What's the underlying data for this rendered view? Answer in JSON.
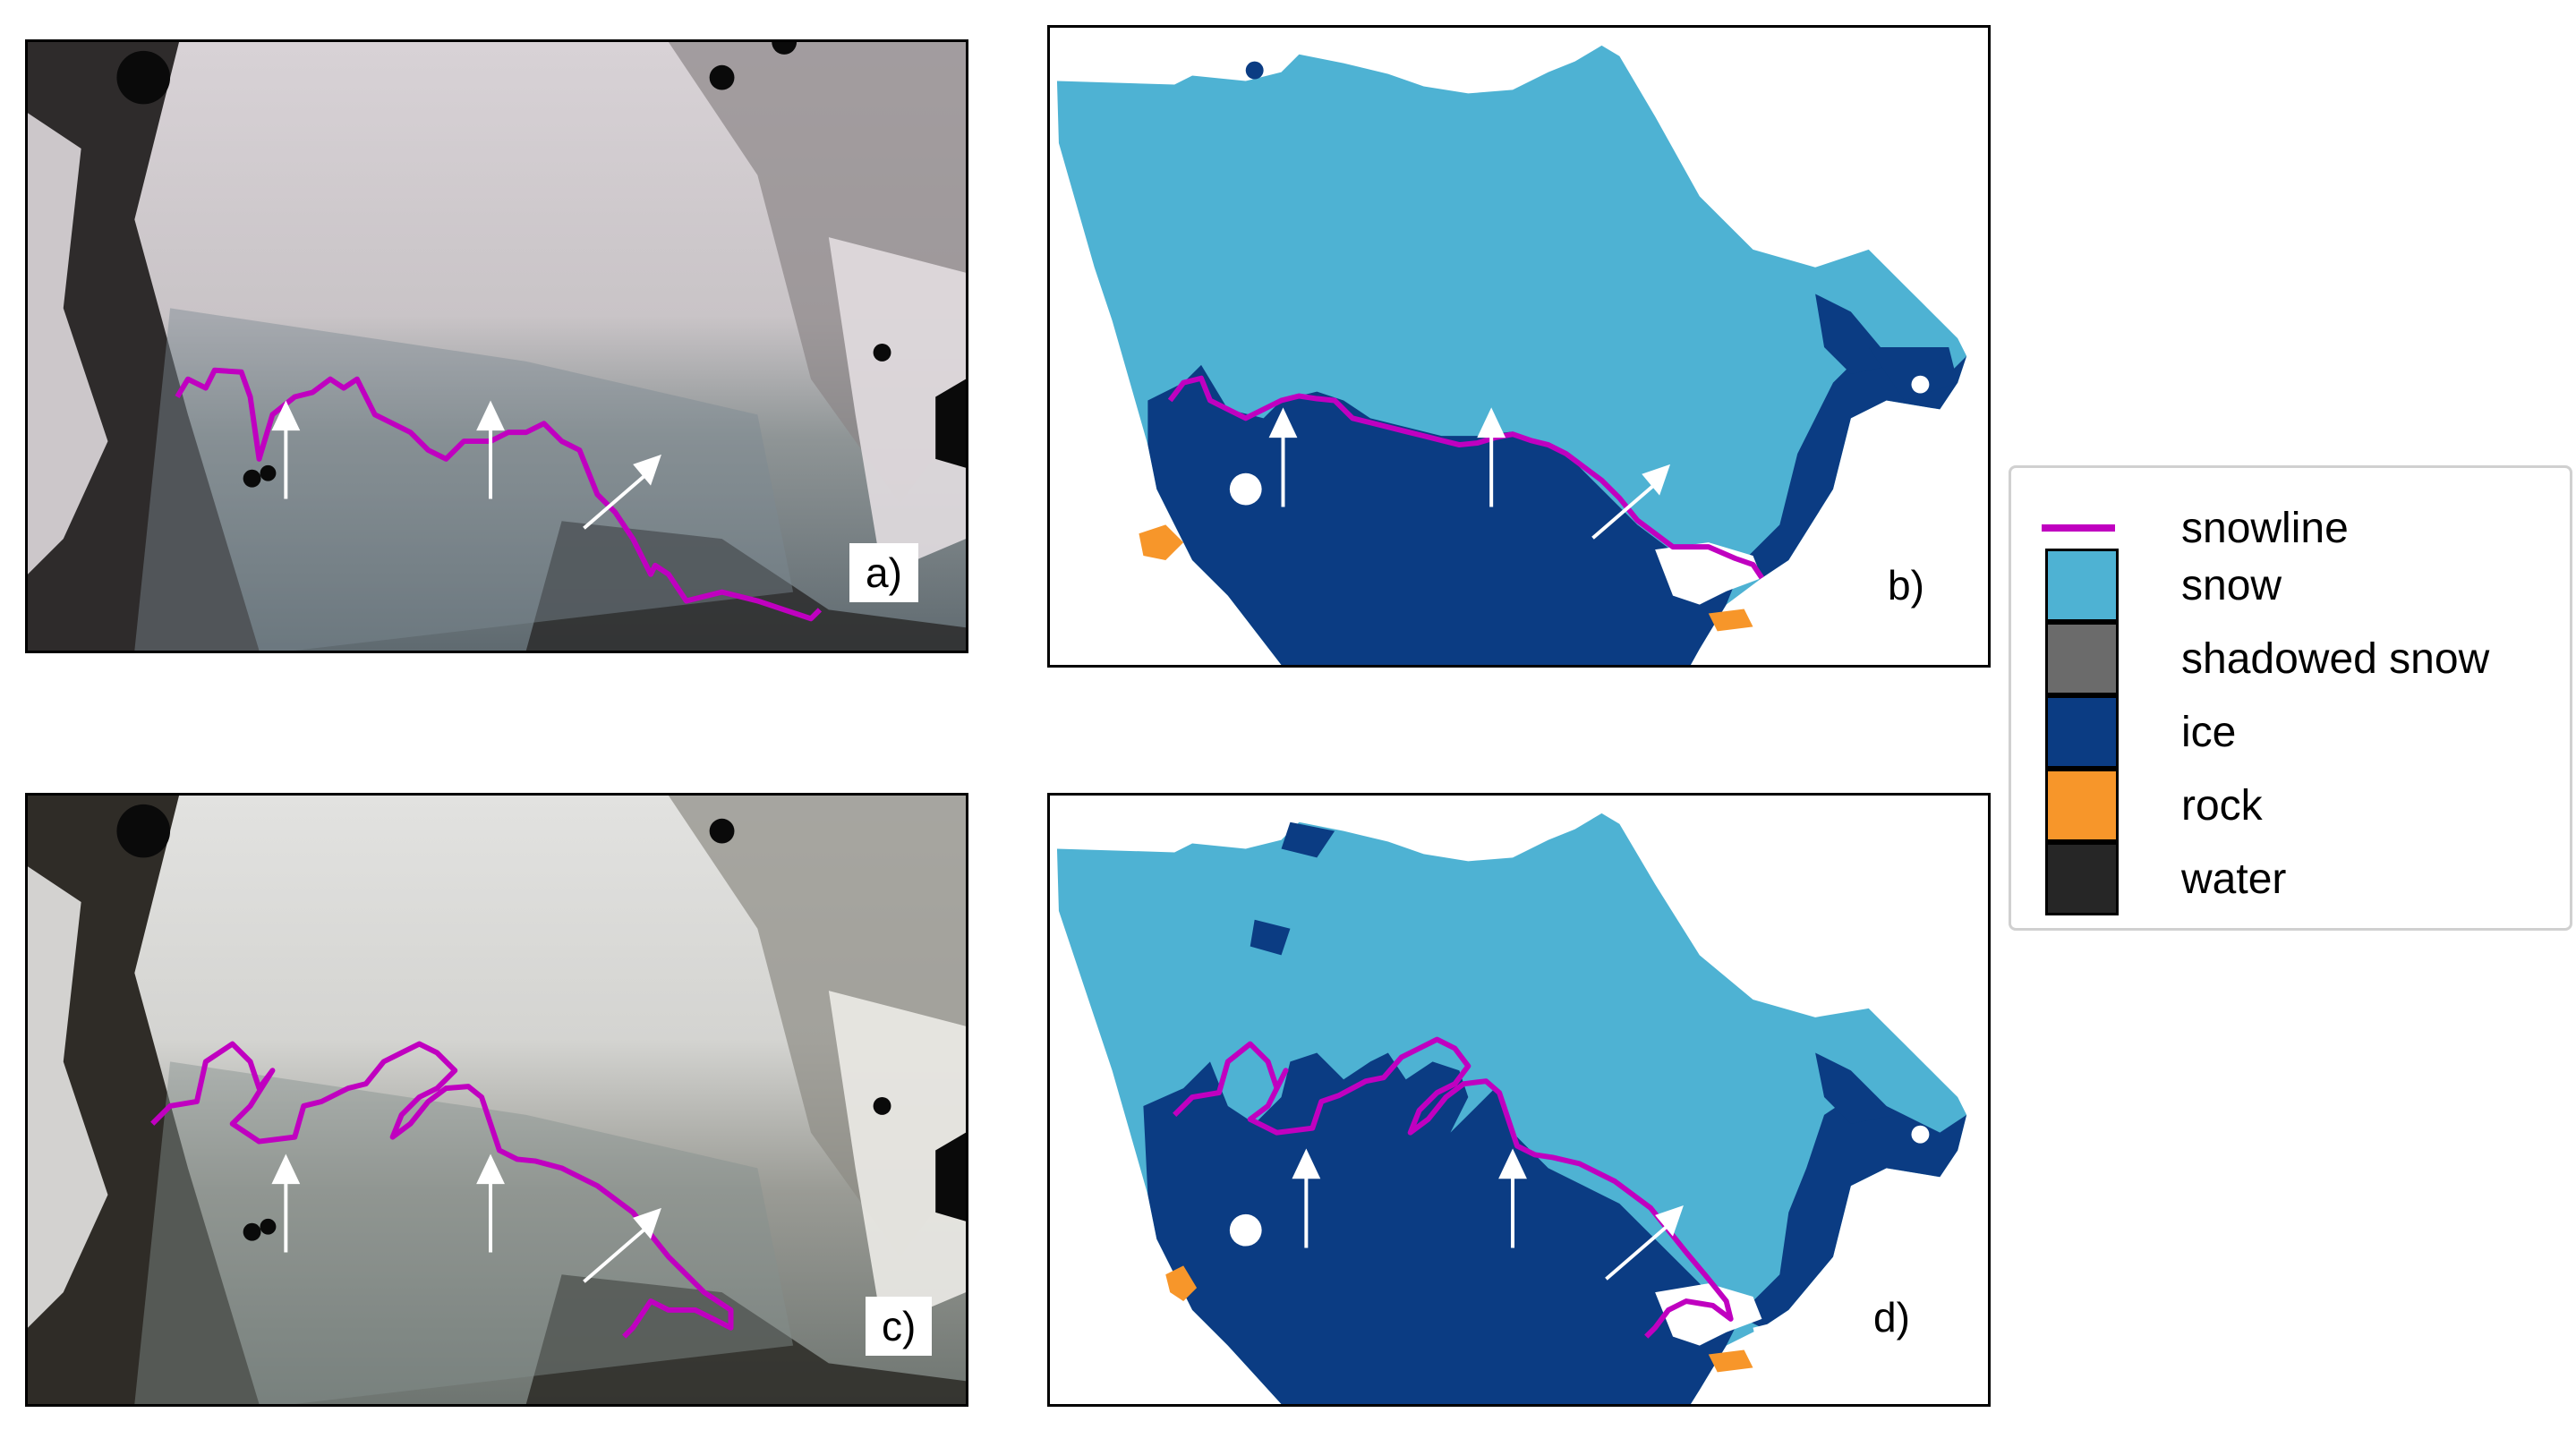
{
  "panels": [
    {
      "id": "a",
      "label": "a)",
      "kind": "satellite image"
    },
    {
      "id": "b",
      "label": "b)",
      "kind": "classified map"
    },
    {
      "id": "c",
      "label": "c)",
      "kind": "satellite image"
    },
    {
      "id": "d",
      "label": "d)",
      "kind": "classified map"
    }
  ],
  "legend": {
    "items": [
      {
        "label": "snowline",
        "color": "#c000c0",
        "type": "line"
      },
      {
        "label": "snow",
        "color": "#4eb2d3",
        "type": "patch"
      },
      {
        "label": "shadowed snow",
        "color": "#6b6b6b",
        "type": "patch"
      },
      {
        "label": "ice",
        "color": "#0b3c83",
        "type": "patch"
      },
      {
        "label": "rock",
        "color": "#f7962a",
        "type": "patch"
      },
      {
        "label": "water",
        "color": "#262626",
        "type": "patch"
      }
    ]
  },
  "colors": {
    "snowline": "#c000c0",
    "snow": "#4eb2d3",
    "ice": "#0b3c83",
    "rock": "#f7962a",
    "arrow": "#ffffff"
  }
}
